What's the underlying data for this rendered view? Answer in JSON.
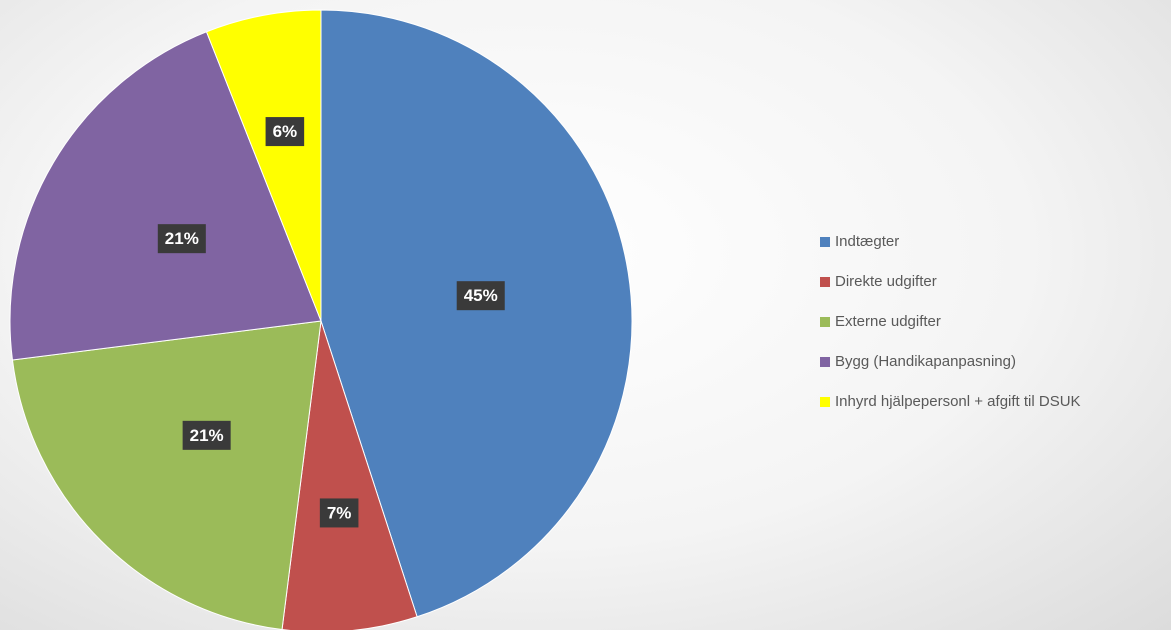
{
  "chart_data": {
    "type": "pie",
    "categories": [
      "Indtægter",
      "Direkte udgifter",
      "Externe udgifter",
      "Bygg (Handikapanpasning)",
      "Inhyrd hjälpepersonl + afgift til DSUK"
    ],
    "values": [
      45,
      7,
      21,
      21,
      6
    ],
    "value_labels": [
      "45%",
      "7%",
      "21%",
      "21%",
      "6%"
    ],
    "colors": [
      "#4f81bd",
      "#c0504d",
      "#9bbb59",
      "#8064a2",
      "#ffff00"
    ],
    "legend": "right"
  }
}
